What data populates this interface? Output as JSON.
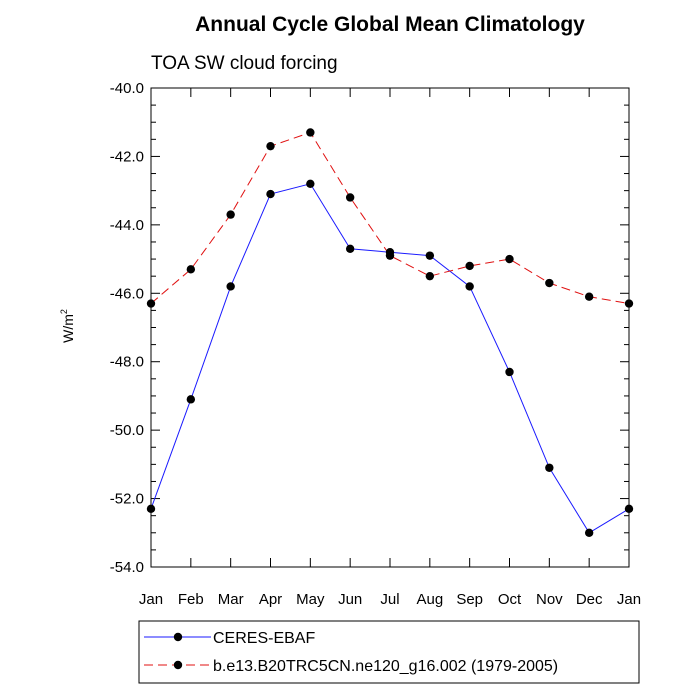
{
  "chart_data": {
    "type": "line",
    "title": "Annual Cycle Global Mean Climatology",
    "subtitle": "TOA SW cloud forcing",
    "xlabel": "",
    "ylabel": "W/m",
    "ylabel_superscript": "2",
    "categories": [
      "Jan",
      "Feb",
      "Mar",
      "Apr",
      "May",
      "Jun",
      "Jul",
      "Aug",
      "Sep",
      "Oct",
      "Nov",
      "Dec",
      "Jan"
    ],
    "ylim": [
      -54.0,
      -40.0
    ],
    "yticks": [
      "-40.0",
      "-42.0",
      "-44.0",
      "-46.0",
      "-48.0",
      "-50.0",
      "-52.0",
      "-54.0"
    ],
    "series": [
      {
        "name": "CERES-EBAF",
        "color": "#1a1aff",
        "style": "solid",
        "values": [
          -52.3,
          -49.1,
          -45.8,
          -43.1,
          -42.8,
          -44.7,
          -44.8,
          -44.9,
          -45.8,
          -48.3,
          -51.1,
          -53.0,
          -52.3
        ]
      },
      {
        "name": "b.e13.B20TRC5CN.ne120_g16.002 (1979-2005)",
        "color": "#e01010",
        "style": "dashed",
        "values": [
          -46.3,
          -45.3,
          -43.7,
          -41.7,
          -41.3,
          -43.2,
          -44.9,
          -45.5,
          -45.2,
          -45.0,
          -45.7,
          -46.1,
          -46.3
        ]
      }
    ],
    "legend_position": "bottom",
    "grid": false
  }
}
